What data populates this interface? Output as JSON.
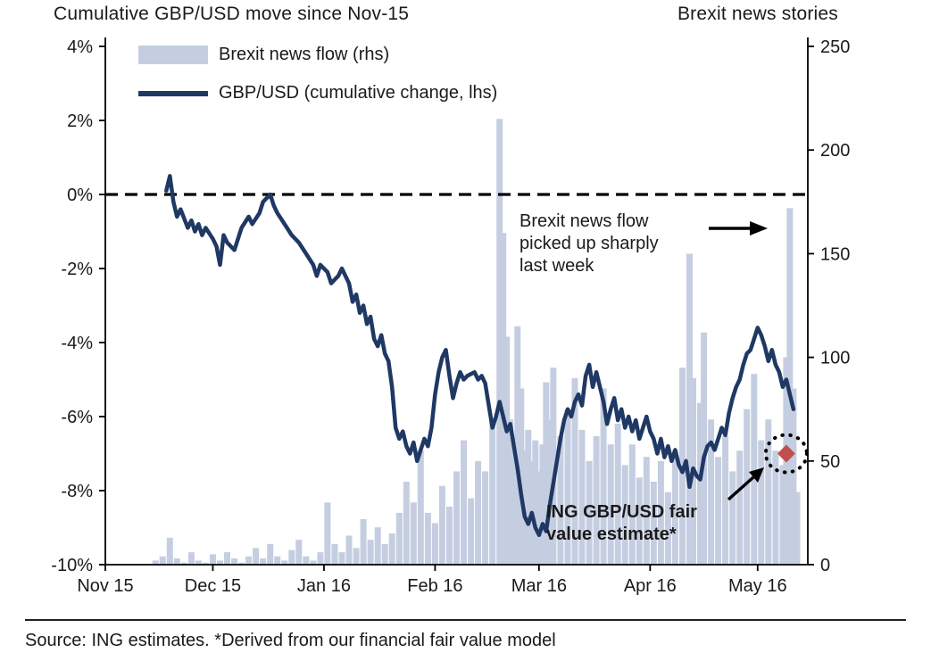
{
  "chart_data": {
    "type": "combo",
    "title_left": "Cumulative GBP/USD move since Nov-15",
    "title_right": "Brexit news stories",
    "source": "Source: ING estimates. *Derived from our financial fair value model",
    "legend": [
      {
        "label": "Brexit news flow (rhs)",
        "swatch": "area",
        "color": "#c5cee1"
      },
      {
        "label": "GBP/USD (cumulative change, lhs)",
        "swatch": "line",
        "color": "#1f3864"
      }
    ],
    "colors": {
      "news_flow": "#c5cee1",
      "gbp_line": "#1f3864",
      "zero_line": "#000000",
      "fair_value_marker": "#c0504d",
      "text": "#1a1a1a"
    },
    "left_axis": {
      "title": "Cumulative GBP/USD move since Nov-15",
      "max": 4,
      "min": -10,
      "unit": "%",
      "ticks": [
        {
          "v": 4,
          "label": "4%"
        },
        {
          "v": 2,
          "label": "2%"
        },
        {
          "v": 0,
          "label": "0%"
        },
        {
          "v": -2,
          "label": "-2%"
        },
        {
          "v": -4,
          "label": "-4%"
        },
        {
          "v": -6,
          "label": "-6%"
        },
        {
          "v": -8,
          "label": "-8%"
        },
        {
          "v": -10,
          "label": "-10%"
        }
      ]
    },
    "right_axis": {
      "title": "Brexit news stories",
      "max": 250,
      "min": 0,
      "ticks": [
        {
          "v": 250,
          "label": "250"
        },
        {
          "v": 200,
          "label": "200"
        },
        {
          "v": 150,
          "label": "150"
        },
        {
          "v": 100,
          "label": "100"
        },
        {
          "v": 50,
          "label": "50"
        },
        {
          "v": 0,
          "label": "0"
        }
      ]
    },
    "x_axis": {
      "note": "day offset from 1 Nov 2015",
      "domain": [
        0,
        196
      ],
      "ticks": [
        {
          "d": 0,
          "label": "Nov 15"
        },
        {
          "d": 30,
          "label": "Dec 15"
        },
        {
          "d": 61,
          "label": "Jan 16"
        },
        {
          "d": 92,
          "label": "Feb 16"
        },
        {
          "d": 121,
          "label": "Mar 16"
        },
        {
          "d": 152,
          "label": "Apr 16"
        },
        {
          "d": 182,
          "label": "May 16"
        }
      ]
    },
    "zero_line": {
      "value": 0,
      "style": "dashed"
    },
    "annotations": {
      "news_spike": {
        "text": "Brexit news flow picked up sharply last week"
      },
      "fair_value": {
        "text": "ING GBP/USD fair value estimate*",
        "marker": {
          "day": 190,
          "pct": -7.0,
          "shape": "diamond",
          "color": "#c0504d"
        }
      }
    },
    "series": [
      {
        "name": "Brexit news flow (rhs)",
        "type": "bar",
        "axis": "right",
        "color": "#c5cee1",
        "points": [
          [
            14,
            2
          ],
          [
            16,
            4
          ],
          [
            18,
            13
          ],
          [
            20,
            3
          ],
          [
            22,
            1
          ],
          [
            24,
            6
          ],
          [
            26,
            2
          ],
          [
            28,
            1
          ],
          [
            30,
            5
          ],
          [
            32,
            2
          ],
          [
            34,
            6
          ],
          [
            36,
            3
          ],
          [
            38,
            1
          ],
          [
            40,
            4
          ],
          [
            42,
            8
          ],
          [
            44,
            3
          ],
          [
            46,
            10
          ],
          [
            48,
            4
          ],
          [
            50,
            2
          ],
          [
            52,
            7
          ],
          [
            54,
            12
          ],
          [
            56,
            4
          ],
          [
            58,
            2
          ],
          [
            60,
            6
          ],
          [
            62,
            30
          ],
          [
            64,
            10
          ],
          [
            66,
            6
          ],
          [
            68,
            14
          ],
          [
            70,
            8
          ],
          [
            72,
            22
          ],
          [
            74,
            12
          ],
          [
            76,
            18
          ],
          [
            78,
            10
          ],
          [
            80,
            15
          ],
          [
            82,
            25
          ],
          [
            84,
            40
          ],
          [
            86,
            30
          ],
          [
            88,
            55
          ],
          [
            90,
            25
          ],
          [
            92,
            20
          ],
          [
            94,
            38
          ],
          [
            96,
            28
          ],
          [
            98,
            45
          ],
          [
            100,
            60
          ],
          [
            102,
            32
          ],
          [
            104,
            50
          ],
          [
            106,
            45
          ],
          [
            108,
            70
          ],
          [
            110,
            215
          ],
          [
            111,
            160
          ],
          [
            112,
            110
          ],
          [
            113,
            70
          ],
          [
            114,
            60
          ],
          [
            115,
            115
          ],
          [
            116,
            85
          ],
          [
            117,
            55
          ],
          [
            118,
            65
          ],
          [
            119,
            50
          ],
          [
            120,
            60
          ],
          [
            121,
            45
          ],
          [
            122,
            58
          ],
          [
            123,
            88
          ],
          [
            124,
            70
          ],
          [
            125,
            95
          ],
          [
            127,
            62
          ],
          [
            129,
            75
          ],
          [
            131,
            90
          ],
          [
            133,
            65
          ],
          [
            135,
            50
          ],
          [
            137,
            62
          ],
          [
            139,
            85
          ],
          [
            141,
            58
          ],
          [
            143,
            68
          ],
          [
            145,
            48
          ],
          [
            147,
            58
          ],
          [
            149,
            42
          ],
          [
            151,
            52
          ],
          [
            153,
            40
          ],
          [
            155,
            50
          ],
          [
            157,
            35
          ],
          [
            159,
            55
          ],
          [
            161,
            95
          ],
          [
            163,
            150
          ],
          [
            164,
            90
          ],
          [
            166,
            78
          ],
          [
            167,
            112
          ],
          [
            169,
            70
          ],
          [
            171,
            52
          ],
          [
            173,
            62
          ],
          [
            175,
            45
          ],
          [
            177,
            55
          ],
          [
            179,
            75
          ],
          [
            181,
            92
          ],
          [
            183,
            60
          ],
          [
            185,
            70
          ],
          [
            187,
            55
          ],
          [
            189,
            48
          ],
          [
            190,
            100
          ],
          [
            191,
            172
          ],
          [
            192,
            85
          ],
          [
            193,
            35
          ]
        ]
      },
      {
        "name": "GBP/USD (cumulative change, lhs)",
        "type": "line",
        "axis": "left",
        "color": "#1f3864",
        "points": [
          [
            17,
            0.1
          ],
          [
            18,
            0.5
          ],
          [
            19,
            -0.2
          ],
          [
            20,
            -0.6
          ],
          [
            21,
            -0.4
          ],
          [
            23,
            -0.9
          ],
          [
            24,
            -0.7
          ],
          [
            25,
            -1.0
          ],
          [
            26,
            -0.8
          ],
          [
            27,
            -1.1
          ],
          [
            28,
            -0.9
          ],
          [
            30,
            -1.2
          ],
          [
            31,
            -1.4
          ],
          [
            32,
            -1.9
          ],
          [
            33,
            -1.1
          ],
          [
            34,
            -1.3
          ],
          [
            36,
            -1.5
          ],
          [
            37,
            -1.2
          ],
          [
            38,
            -0.9
          ],
          [
            40,
            -0.6
          ],
          [
            41,
            -0.8
          ],
          [
            43,
            -0.5
          ],
          [
            44,
            -0.2
          ],
          [
            46,
            0.0
          ],
          [
            47,
            -0.3
          ],
          [
            48,
            -0.5
          ],
          [
            50,
            -0.8
          ],
          [
            52,
            -1.1
          ],
          [
            54,
            -1.3
          ],
          [
            56,
            -1.6
          ],
          [
            58,
            -1.9
          ],
          [
            59,
            -2.2
          ],
          [
            60,
            -1.9
          ],
          [
            62,
            -2.1
          ],
          [
            63,
            -2.4
          ],
          [
            65,
            -2.2
          ],
          [
            66,
            -2.0
          ],
          [
            68,
            -2.4
          ],
          [
            69,
            -2.9
          ],
          [
            70,
            -2.7
          ],
          [
            71,
            -3.2
          ],
          [
            72,
            -3.0
          ],
          [
            73,
            -3.5
          ],
          [
            74,
            -3.3
          ],
          [
            75,
            -3.9
          ],
          [
            76,
            -4.1
          ],
          [
            77,
            -3.8
          ],
          [
            78,
            -4.3
          ],
          [
            79,
            -4.5
          ],
          [
            80,
            -5.2
          ],
          [
            81,
            -6.3
          ],
          [
            82,
            -6.6
          ],
          [
            83,
            -6.4
          ],
          [
            84,
            -6.8
          ],
          [
            85,
            -7.0
          ],
          [
            86,
            -6.7
          ],
          [
            87,
            -7.2
          ],
          [
            88,
            -6.9
          ],
          [
            89,
            -6.6
          ],
          [
            90,
            -6.8
          ],
          [
            91,
            -6.3
          ],
          [
            92,
            -5.4
          ],
          [
            93,
            -4.8
          ],
          [
            94,
            -4.4
          ],
          [
            95,
            -4.2
          ],
          [
            96,
            -4.9
          ],
          [
            97,
            -5.5
          ],
          [
            98,
            -5.1
          ],
          [
            99,
            -4.8
          ],
          [
            100,
            -5.0
          ],
          [
            101,
            -4.9
          ],
          [
            103,
            -4.8
          ],
          [
            104,
            -5.0
          ],
          [
            105,
            -4.9
          ],
          [
            106,
            -5.1
          ],
          [
            107,
            -5.7
          ],
          [
            108,
            -6.3
          ],
          [
            109,
            -6.0
          ],
          [
            110,
            -5.6
          ],
          [
            111,
            -6.0
          ],
          [
            112,
            -6.4
          ],
          [
            113,
            -6.2
          ],
          [
            114,
            -6.8
          ],
          [
            115,
            -7.4
          ],
          [
            116,
            -8.1
          ],
          [
            117,
            -8.7
          ],
          [
            118,
            -8.9
          ],
          [
            119,
            -8.6
          ],
          [
            120,
            -9.0
          ],
          [
            121,
            -9.2
          ],
          [
            122,
            -8.9
          ],
          [
            123,
            -9.1
          ],
          [
            124,
            -8.4
          ],
          [
            125,
            -7.8
          ],
          [
            126,
            -7.2
          ],
          [
            127,
            -6.6
          ],
          [
            128,
            -6.1
          ],
          [
            129,
            -5.8
          ],
          [
            130,
            -6.0
          ],
          [
            131,
            -5.6
          ],
          [
            132,
            -5.4
          ],
          [
            133,
            -5.7
          ],
          [
            134,
            -4.9
          ],
          [
            135,
            -4.6
          ],
          [
            136,
            -5.2
          ],
          [
            137,
            -4.8
          ],
          [
            138,
            -5.2
          ],
          [
            139,
            -5.6
          ],
          [
            140,
            -6.2
          ],
          [
            141,
            -5.8
          ],
          [
            142,
            -5.5
          ],
          [
            143,
            -6.1
          ],
          [
            144,
            -5.8
          ],
          [
            145,
            -6.3
          ],
          [
            146,
            -6.0
          ],
          [
            147,
            -6.4
          ],
          [
            148,
            -6.1
          ],
          [
            149,
            -6.6
          ],
          [
            150,
            -6.3
          ],
          [
            151,
            -6.0
          ],
          [
            152,
            -6.4
          ],
          [
            153,
            -6.6
          ],
          [
            154,
            -7.0
          ],
          [
            155,
            -6.6
          ],
          [
            156,
            -7.1
          ],
          [
            157,
            -6.8
          ],
          [
            158,
            -7.2
          ],
          [
            159,
            -6.9
          ],
          [
            160,
            -7.3
          ],
          [
            161,
            -7.5
          ],
          [
            162,
            -7.2
          ],
          [
            163,
            -7.9
          ],
          [
            164,
            -7.4
          ],
          [
            165,
            -7.6
          ],
          [
            166,
            -7.7
          ],
          [
            167,
            -7.1
          ],
          [
            168,
            -6.8
          ],
          [
            169,
            -6.7
          ],
          [
            170,
            -6.9
          ],
          [
            171,
            -6.6
          ],
          [
            172,
            -6.3
          ],
          [
            173,
            -6.5
          ],
          [
            174,
            -5.9
          ],
          [
            175,
            -5.5
          ],
          [
            176,
            -5.2
          ],
          [
            177,
            -5.0
          ],
          [
            178,
            -4.6
          ],
          [
            179,
            -4.3
          ],
          [
            180,
            -4.2
          ],
          [
            181,
            -3.9
          ],
          [
            182,
            -3.6
          ],
          [
            183,
            -3.8
          ],
          [
            184,
            -4.1
          ],
          [
            185,
            -4.5
          ],
          [
            186,
            -4.2
          ],
          [
            187,
            -4.6
          ],
          [
            188,
            -4.8
          ],
          [
            189,
            -5.2
          ],
          [
            190,
            -5.0
          ],
          [
            191,
            -5.4
          ],
          [
            192,
            -5.8
          ]
        ]
      }
    ]
  }
}
